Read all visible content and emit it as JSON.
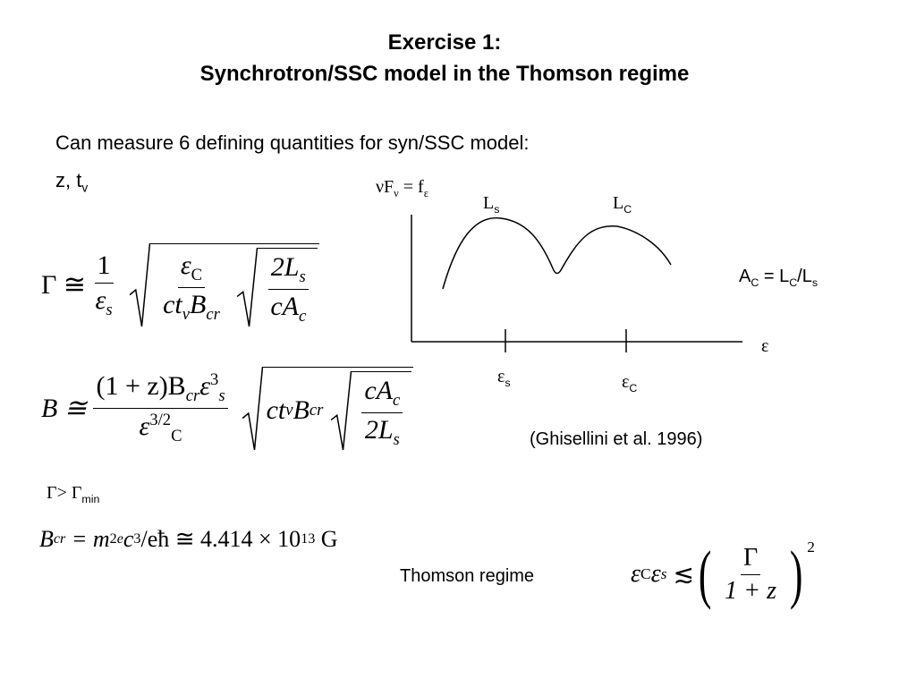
{
  "title": {
    "line1": "Exercise 1:",
    "line2": "Synchrotron/SSC model in the Thomson regime"
  },
  "intro": "Can measure 6 defining quantities for syn/SSC model:",
  "params": {
    "text": "z, t",
    "sub": "v"
  },
  "equations": {
    "gamma": {
      "lhs": "Γ ≅",
      "a_num": "1",
      "a_den": "ε",
      "a_den_sub": "s",
      "b_num": "ε",
      "b_num_sub": "C",
      "b_den": "ct",
      "b_den_sub": "v",
      "b_den2": "B",
      "b_den2_sub": "cr",
      "c_num": "2L",
      "c_num_sub": "s",
      "c_den": "cA",
      "c_den_sub": "c"
    },
    "field": {
      "lhs": "B ≅",
      "a_num": "(1 + z)B",
      "a_num_sub": "cr",
      "a_num2": "ε",
      "a_num2_sup": "3",
      "a_num2_sub": "s",
      "a_den": "ε",
      "a_den_sup": "3/2",
      "a_den_sub": "C",
      "b": "ct",
      "b_sub": "v",
      "b2": "B",
      "b2_sub": "cr",
      "c_num": "cA",
      "c_num_sub": "c",
      "c_den": "2L",
      "c_den_sub": "s"
    },
    "gamma_min": {
      "text": "Γ> Γ",
      "sub": "min"
    },
    "bcr": {
      "lhs": "B",
      "lhs_sub": "cr",
      "mid": "= m",
      "mid_sup": "2",
      "mid_sub": "e",
      "rest": "c",
      "rest_sup": "3",
      "rest2": "/eħ ≅ 4.414 × 10",
      "rest2_sup": "13",
      "unit": "G"
    },
    "thomson": {
      "lhs": "ε",
      "lhs_sub": "C",
      "lhs2": "ε",
      "lhs2_sub": "s",
      "rel": "≲",
      "lpar": "(",
      "num": "Γ",
      "den": "1 + z",
      "rpar": ")",
      "sup": "2"
    }
  },
  "diagram": {
    "y_label": "νF",
    "y_label_sub": "ν",
    "y_label_eq": "= f",
    "y_label_eq_sub": "ε",
    "peak1": "L",
    "peak1_sub": "s",
    "peak2": "L",
    "peak2_sub": "C",
    "x_label": "ε",
    "tick1": "ε",
    "tick1_sub": "s",
    "tick2": "ε",
    "tick2_sub": "C"
  },
  "ratio": {
    "a": "A",
    "a_sub": "C",
    "b": " = L",
    "b_sub": "C",
    "c": "/L",
    "c_sub": "s"
  },
  "citation": "(Ghisellini et al. 1996)",
  "regime_label": "Thomson regime"
}
